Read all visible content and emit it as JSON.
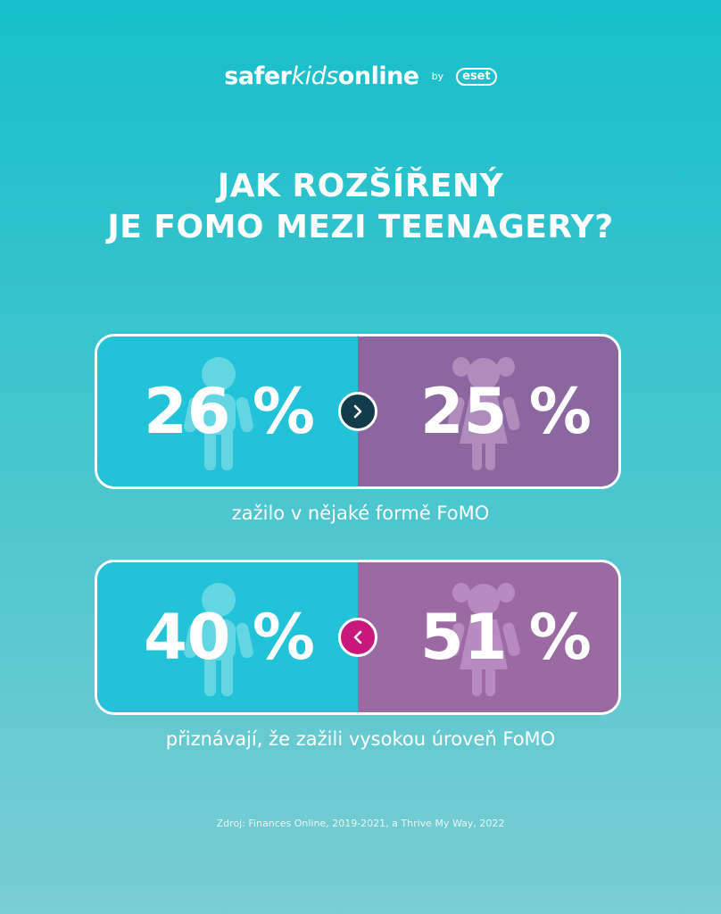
{
  "logo": {
    "brand_part1": "safer",
    "brand_part2": "kids",
    "brand_part3": "online",
    "by": "by",
    "partner": "eset"
  },
  "title": {
    "line1": "JAK ROZŠÍŘENÝ",
    "line2": "JE FOMO MEZI TEENAGERY?"
  },
  "stats": [
    {
      "boys_value": "26 %",
      "girls_value": "25 %",
      "comparison": "greater-than",
      "caption": "zažilo v nějaké formě FoMO"
    },
    {
      "boys_value": "40 %",
      "girls_value": "51 %",
      "comparison": "less-than",
      "caption": "přiznávají, že zažili vysokou úroveň FoMO"
    }
  ],
  "icons": {
    "boy": "boy-silhouette-icon",
    "girl": "girl-silhouette-icon",
    "greater": "chevron-right-icon",
    "less": "chevron-left-icon"
  },
  "colors": {
    "boys": "#22c2d8",
    "girls": "#8b669f",
    "greater_badge": "#123c4a",
    "less_badge": "#c8187c"
  },
  "source": "Zdroj: Finances Online, 2019-2021, a Thrive My Way, 2022"
}
